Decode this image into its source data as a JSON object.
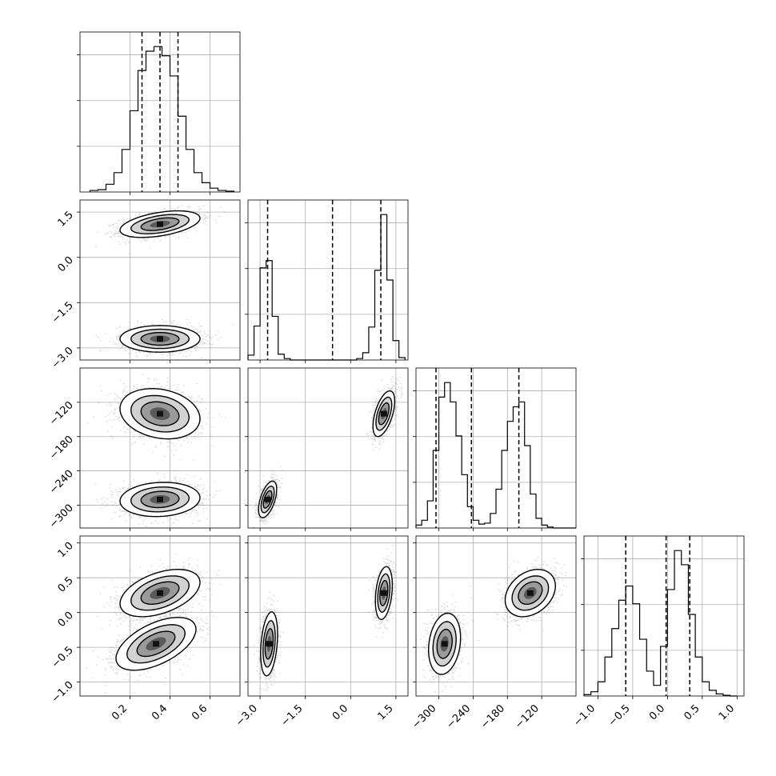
{
  "chart_data": {
    "type": "corner",
    "grid": true,
    "parameters": [
      {
        "range": [
          -0.05,
          0.75
        ],
        "ticks": [
          0.2,
          0.4,
          0.6
        ],
        "tick_labels": [
          "0.2",
          "0.4",
          "0.6"
        ],
        "quantiles": [
          0.26,
          0.35,
          0.44
        ],
        "histogram": {
          "bin_edges": [
            0.0,
            0.04,
            0.08,
            0.12,
            0.16,
            0.2,
            0.24,
            0.28,
            0.32,
            0.36,
            0.4,
            0.44,
            0.48,
            0.52,
            0.56,
            0.6,
            0.64,
            0.68,
            0.72
          ],
          "counts": [
            2,
            3,
            10,
            25,
            55,
            105,
            157,
            182,
            188,
            176,
            150,
            98,
            55,
            25,
            12,
            5,
            2,
            1
          ]
        }
      },
      {
        "range": [
          -3.4,
          1.9
        ],
        "ticks": [
          -3.0,
          -1.5,
          0.0,
          1.5
        ],
        "tick_labels": [
          "−3.0",
          "−1.5",
          "0.0",
          "1.5"
        ],
        "quantiles": [
          -2.75,
          -0.6,
          1.0
        ],
        "histogram": {
          "bin_edges": [
            -3.4,
            -3.2,
            -3.0,
            -2.8,
            -2.6,
            -2.4,
            -2.2,
            -2.0,
            0.2,
            0.4,
            0.6,
            0.8,
            1.0,
            1.2,
            1.4,
            1.6,
            1.8
          ],
          "counts": [
            10,
            70,
            190,
            205,
            90,
            12,
            3,
            0,
            3,
            15,
            68,
            185,
            300,
            165,
            40,
            5
          ]
        }
      },
      {
        "range": [
          -340,
          -60
        ],
        "ticks": [
          -300,
          -240,
          -180,
          -120
        ],
        "tick_labels": [
          "−300",
          "−240",
          "−180",
          "−120"
        ],
        "quantiles": [
          -305,
          -243,
          -160
        ],
        "histogram": {
          "bin_edges": [
            -340,
            -330,
            -320,
            -310,
            -300,
            -290,
            -280,
            -270,
            -260,
            -250,
            -240,
            -230,
            -220,
            -210,
            -200,
            -190,
            -180,
            -170,
            -160,
            -150,
            -140,
            -130,
            -120,
            -110,
            -100,
            -90,
            -80,
            -70,
            -60
          ],
          "counts": [
            3,
            8,
            28,
            80,
            135,
            150,
            130,
            95,
            55,
            22,
            8,
            4,
            5,
            15,
            40,
            80,
            110,
            125,
            130,
            85,
            35,
            10,
            3,
            1,
            0,
            0,
            0,
            0
          ]
        }
      },
      {
        "range": [
          -1.2,
          1.1
        ],
        "ticks": [
          -1.0,
          -0.5,
          0.0,
          0.5,
          1.0
        ],
        "tick_labels": [
          "−1.0",
          "−0.5",
          "0.0",
          "0.5",
          "1.0"
        ],
        "quantiles": [
          -0.6,
          -0.02,
          0.32
        ],
        "histogram": {
          "bin_edges": [
            -1.2,
            -1.1,
            -1.0,
            -0.9,
            -0.8,
            -0.7,
            -0.6,
            -0.5,
            -0.4,
            -0.3,
            -0.2,
            -0.1,
            0.0,
            0.1,
            0.2,
            0.3,
            0.4,
            0.5,
            0.6,
            0.7,
            0.8,
            0.9,
            1.0
          ],
          "counts": [
            2,
            6,
            20,
            55,
            95,
            135,
            155,
            130,
            80,
            35,
            15,
            70,
            150,
            205,
            185,
            115,
            55,
            20,
            8,
            3,
            1,
            0
          ]
        }
      }
    ],
    "pairs": [
      {
        "row": 1,
        "col": 0,
        "clusters": [
          {
            "mean": [
              0.35,
              1.1
            ],
            "sd": [
              0.1,
              0.22
            ],
            "rho": 0.45
          },
          {
            "mean": [
              0.35,
              -2.7
            ],
            "sd": [
              0.1,
              0.22
            ],
            "rho": 0.0
          }
        ]
      },
      {
        "row": 2,
        "col": 0,
        "clusters": [
          {
            "mean": [
              0.35,
              -140
            ],
            "sd": [
              0.1,
              22
            ],
            "rho": -0.2
          },
          {
            "mean": [
              0.35,
              -290
            ],
            "sd": [
              0.1,
              15
            ],
            "rho": 0.1
          }
        ]
      },
      {
        "row": 2,
        "col": 1,
        "clusters": [
          {
            "mean": [
              1.1,
              -140
            ],
            "sd": [
              0.18,
              20
            ],
            "rho": 0.55
          },
          {
            "mean": [
              -2.75,
              -290
            ],
            "sd": [
              0.15,
              16
            ],
            "rho": 0.55
          }
        ]
      },
      {
        "row": 3,
        "col": 0,
        "clusters": [
          {
            "mean": [
              0.35,
              0.28
            ],
            "sd": [
              0.1,
              0.17
            ],
            "rho": 0.45
          },
          {
            "mean": [
              0.33,
              -0.45
            ],
            "sd": [
              0.1,
              0.19
            ],
            "rho": 0.55
          }
        ]
      },
      {
        "row": 3,
        "col": 1,
        "clusters": [
          {
            "mean": [
              1.1,
              0.28
            ],
            "sd": [
              0.14,
              0.19
            ],
            "rho": 0.3
          },
          {
            "mean": [
              -2.7,
              -0.45
            ],
            "sd": [
              0.14,
              0.23
            ],
            "rho": 0.3
          }
        ]
      },
      {
        "row": 3,
        "col": 2,
        "clusters": [
          {
            "mean": [
              -140,
              0.28
            ],
            "sd": [
              22,
              0.17
            ],
            "rho": 0.3
          },
          {
            "mean": [
              -290,
              -0.45
            ],
            "sd": [
              14,
              0.22
            ],
            "rho": 0.2
          }
        ]
      }
    ]
  }
}
